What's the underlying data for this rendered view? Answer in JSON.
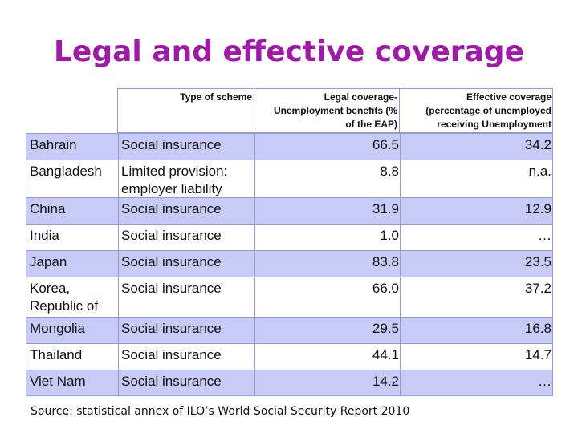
{
  "title": "Legal and effective coverage",
  "table": {
    "headers": {
      "type": "Type of scheme",
      "legal": "Legal coverage-\nUnemployment benefits (%\nof the EAP)",
      "effective": "Effective coverage\n(percentage of unemployed\nreceiving Unemployment"
    },
    "rows": [
      {
        "country": "Bahrain",
        "scheme": "Social insurance",
        "legal": "66.5",
        "effective": "34.2"
      },
      {
        "country": "Bangladesh",
        "scheme": "Limited provision: employer liability",
        "legal": "8.8",
        "effective": "n.a."
      },
      {
        "country": "China",
        "scheme": "Social insurance",
        "legal": "31.9",
        "effective": "12.9"
      },
      {
        "country": "India",
        "scheme": "Social insurance",
        "legal": "1.0",
        "effective": "…"
      },
      {
        "country": "Japan",
        "scheme": "Social insurance",
        "legal": "83.8",
        "effective": "23.5"
      },
      {
        "country": "Korea, Republic of",
        "scheme": "Social insurance",
        "legal": "66.0",
        "effective": "37.2"
      },
      {
        "country": "Mongolia",
        "scheme": "Social insurance",
        "legal": "29.5",
        "effective": "16.8"
      },
      {
        "country": "Thailand",
        "scheme": "Social insurance",
        "legal": "44.1",
        "effective": "14.7"
      },
      {
        "country": "Viet Nam",
        "scheme": "Social insurance",
        "legal": "14.2",
        "effective": "…"
      }
    ]
  },
  "source": "Source: statistical annex of ILO’s World Social Security Report 2010",
  "colors": {
    "title": "#a01aa8",
    "row_shade": "#c9cbf7",
    "border": "#8f9bd6"
  }
}
